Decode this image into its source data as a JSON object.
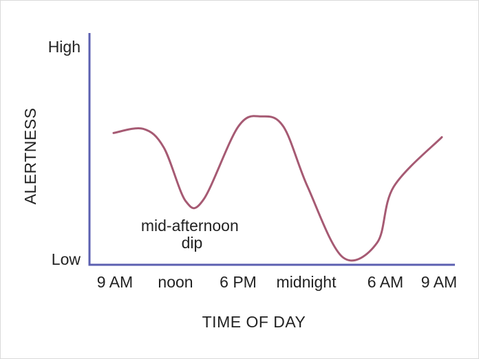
{
  "chart_data": {
    "type": "line",
    "title": "",
    "xlabel": "TIME OF DAY",
    "ylabel": "ALERTNESS",
    "x_tick_labels": [
      "9 AM",
      "noon",
      "6 PM",
      "midnight",
      "6 AM",
      "9 AM"
    ],
    "y_tick_labels": [
      "High",
      "Low"
    ],
    "ylim": [
      0,
      1
    ],
    "grid": false,
    "legend": "none",
    "annotation": "mid-afternoon dip",
    "line_color": "#a65a73",
    "axis_color": "#5b5fb0",
    "series": [
      {
        "points": [
          {
            "x": "9 AM",
            "y": 0.61
          },
          {
            "x": "10:30 AM",
            "y": 0.63
          },
          {
            "x": "noon",
            "y": 0.54
          },
          {
            "x": "1:30 PM",
            "y": 0.28
          },
          {
            "x": "3 PM",
            "y": 0.29
          },
          {
            "x": "6 PM",
            "y": 0.64
          },
          {
            "x": "8 PM",
            "y": 0.69
          },
          {
            "x": "10 PM",
            "y": 0.64
          },
          {
            "x": "midnight",
            "y": 0.35
          },
          {
            "x": "3 AM",
            "y": 0.01
          },
          {
            "x": "5 AM",
            "y": 0.08
          },
          {
            "x": "6 AM",
            "y": 0.35
          },
          {
            "x": "9 AM",
            "y": 0.59
          }
        ]
      }
    ]
  }
}
